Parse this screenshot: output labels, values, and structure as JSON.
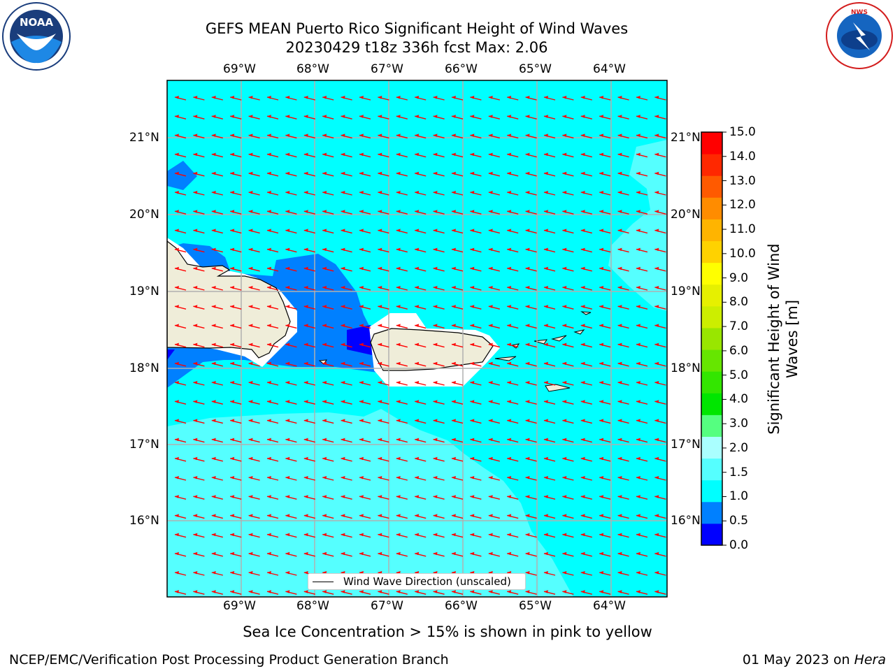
{
  "header": {
    "title_line1": "GEFS MEAN Puerto Rico Significant Height of Wind Waves",
    "title_line2": "20230429 t18z 336h fcst   Max: 2.06",
    "noaa_logo_text": "NOAA",
    "nws_logo_text": "NATIONAL WEATHER SERVICE"
  },
  "map": {
    "lon_labels": [
      "69°W",
      "68°W",
      "67°W",
      "66°W",
      "65°W",
      "64°W"
    ],
    "lat_labels": [
      "21°N",
      "20°N",
      "19°N",
      "18°N",
      "17°N",
      "16°N"
    ],
    "legend_label": "Wind Wave Direction (unscaled)",
    "arrow_color": "#ff0000",
    "land_color": "#efedd9"
  },
  "colorbar": {
    "label": "Significant Height of Wind Waves [m]",
    "ticks": [
      "0.0",
      "0.5",
      "1.0",
      "1.5",
      "2.0",
      "3.0",
      "4.0",
      "5.0",
      "6.0",
      "7.0",
      "8.0",
      "9.0",
      "10.0",
      "11.0",
      "12.0",
      "13.0",
      "14.0",
      "15.0"
    ],
    "colors": [
      "#0000ff",
      "#0080ff",
      "#00ffff",
      "#55ffff",
      "#aaffff",
      "#55ff80",
      "#00e600",
      "#33e600",
      "#66e600",
      "#99e600",
      "#ccee00",
      "#e6f000",
      "#ffff00",
      "#ffd200",
      "#ffb400",
      "#ff8c00",
      "#ff5a00",
      "#ff2800",
      "#ff0000"
    ]
  },
  "footer": {
    "sea_ice_note": "Sea Ice Concentration > 15% is shown in pink to yellow",
    "branch": "NCEP/EMC/Verification Post Processing Product Generation Branch",
    "date": "01 May 2023 on",
    "host": "Hera"
  }
}
